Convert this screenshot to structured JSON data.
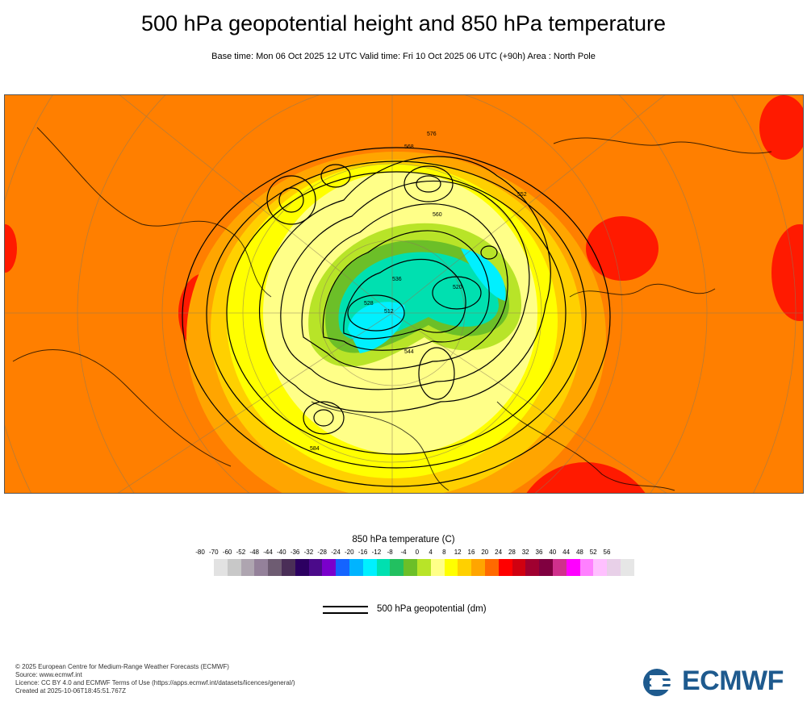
{
  "title": "500 hPa geopotential height and 850 hPa temperature",
  "subtitle": "Base time: Mon 06 Oct 2025 12 UTC Valid time: Fri 10 Oct 2025 06 UTC (+90h) Area : North Pole",
  "map": {
    "contour_labels": [
      "576",
      "584",
      "568",
      "560",
      "552",
      "544",
      "536",
      "528",
      "520",
      "512"
    ]
  },
  "temperature_legend": {
    "title": "850 hPa temperature (C)",
    "ticks": [
      "-80",
      "-70",
      "-60",
      "-52",
      "-48",
      "-44",
      "-40",
      "-36",
      "-32",
      "-28",
      "-24",
      "-20",
      "-16",
      "-12",
      "-8",
      "-4",
      "0",
      "4",
      "8",
      "12",
      "16",
      "20",
      "24",
      "28",
      "32",
      "36",
      "40",
      "44",
      "48",
      "52",
      "56"
    ],
    "colors": [
      "#e2e2e2",
      "#c8c8c8",
      "#aea5b0",
      "#94819a",
      "#6e5c72",
      "#4a2e57",
      "#2c0061",
      "#4b0a8a",
      "#7a00cc",
      "#1464ff",
      "#00b4ff",
      "#00f0ff",
      "#00e0b0",
      "#22c060",
      "#6cbf28",
      "#b8e428",
      "#ffff88",
      "#ffff00",
      "#ffd000",
      "#ffa500",
      "#ff6a00",
      "#ff0000",
      "#d00010",
      "#a00030",
      "#800040",
      "#d0308c",
      "#ff00ff",
      "#ff80ff",
      "#ffc0ff",
      "#e8d0e8",
      "#e6e6e6"
    ]
  },
  "geopotential_legend": {
    "label": "500 hPa geopotential (dm)"
  },
  "credits": {
    "line1": "© 2025 European Centre for Medium-Range Weather Forecasts (ECMWF)",
    "line2": "Source: www.ecmwf.int",
    "line3": "Licence: CC BY 4.0 and ECMWF Terms of Use (https://apps.ecmwf.int/datasets/licences/general/)",
    "line4": "Created at 2025-10-06T18:45:51.767Z"
  },
  "logo": {
    "text": "ECMWF",
    "color": "#1e5a8e"
  }
}
